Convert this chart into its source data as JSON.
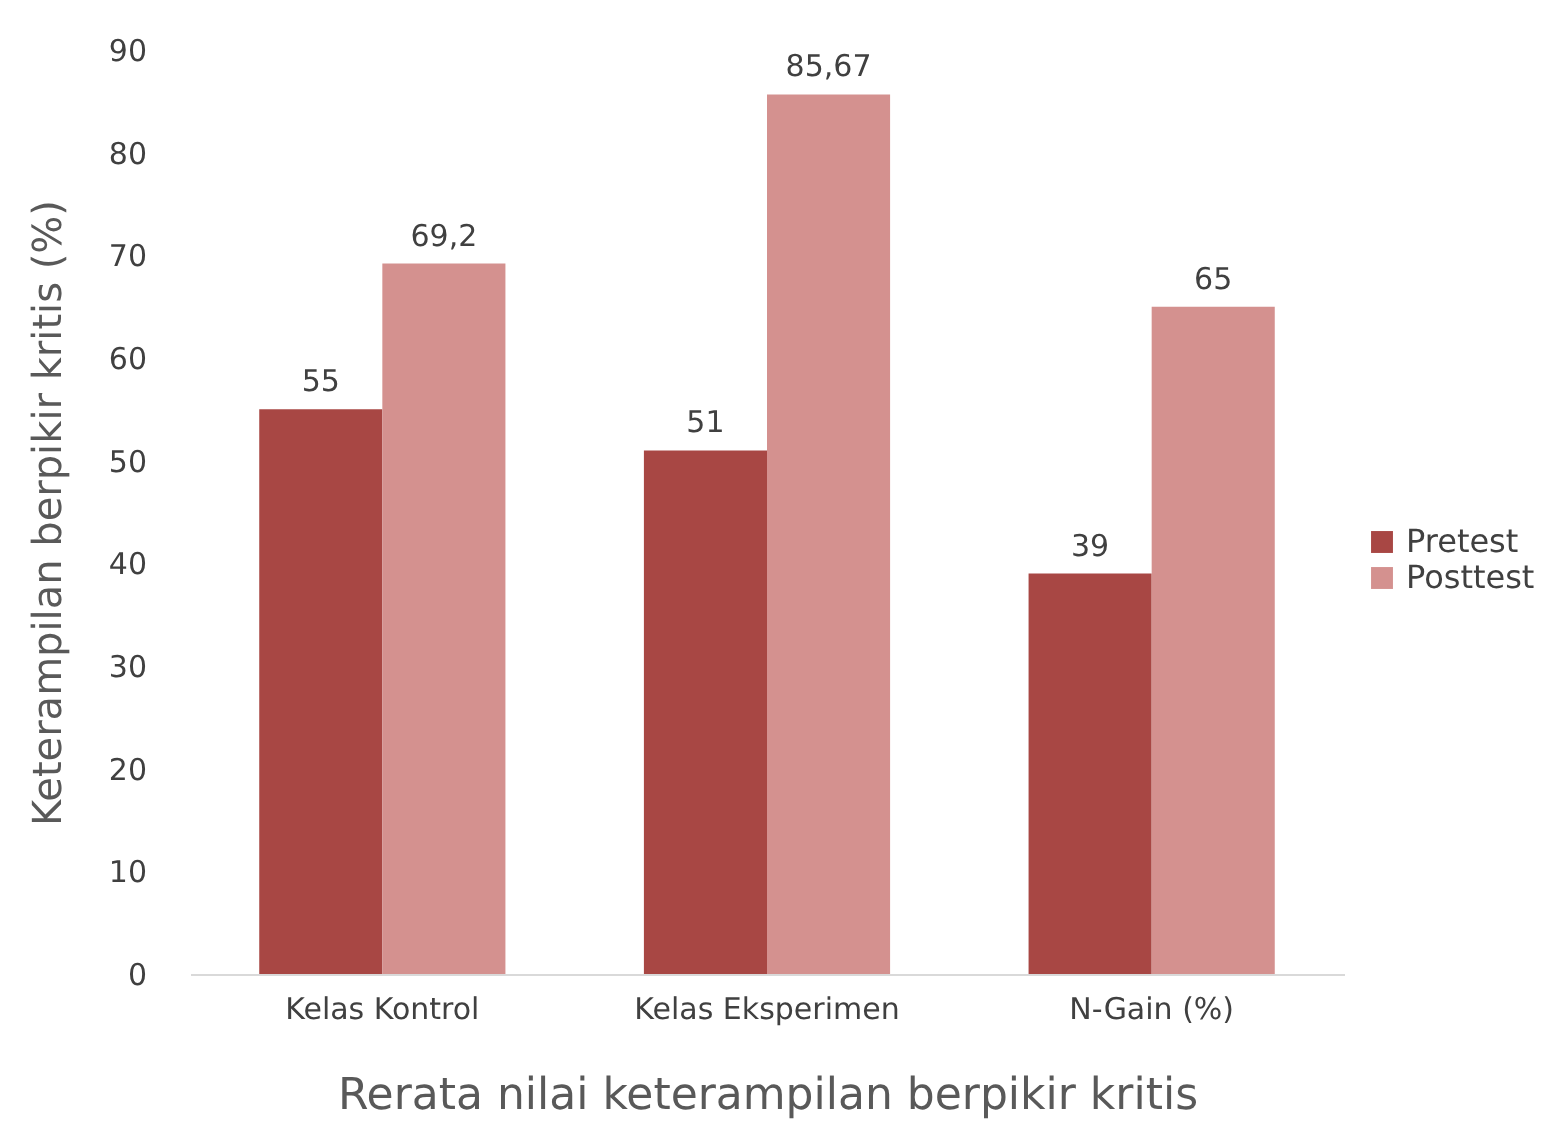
{
  "chart_data": {
    "type": "bar",
    "xlabel": "Rerata nilai keterampilan berpikir kritis",
    "ylabel": "Keterampilan berpikir kritis (%)",
    "categories": [
      "Kelas Kontrol",
      "Kelas Eksperimen",
      "N-Gain (%)"
    ],
    "series": [
      {
        "name": "Pretest",
        "color": "#a84744",
        "values": [
          55,
          51,
          39
        ],
        "value_labels": [
          "55",
          "51",
          "39"
        ]
      },
      {
        "name": "Posttest",
        "color": "#d4918f",
        "values": [
          69.2,
          85.67,
          65
        ],
        "value_labels": [
          "69,2",
          "85,67",
          "65"
        ]
      }
    ],
    "ylim": [
      0,
      90
    ],
    "yticks": [
      0,
      10,
      20,
      30,
      40,
      50,
      60,
      70,
      80,
      90
    ],
    "grid": false,
    "legend": "right"
  }
}
